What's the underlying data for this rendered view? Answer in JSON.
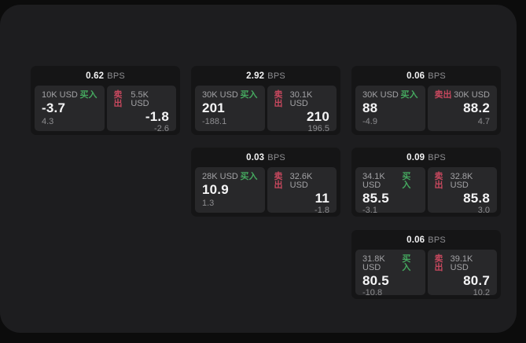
{
  "labels": {
    "bps_unit": "BPS",
    "buy": "买入",
    "sell": "卖出"
  },
  "colors": {
    "buy_green": "#45a85f",
    "sell_red": "#c7485e",
    "window_bg": "#1d1d1f",
    "card_bg": "#151516",
    "panel_bg": "#28282a"
  },
  "cards": [
    {
      "bps": "0.62",
      "buy": {
        "amount": "10K USD",
        "price": "-3.7",
        "delta": "4.3"
      },
      "sell": {
        "amount": "5.5K USD",
        "price": "-1.8",
        "delta": "-2.6"
      }
    },
    {
      "bps": "2.92",
      "buy": {
        "amount": "30K USD",
        "price": "201",
        "delta": "-188.1"
      },
      "sell": {
        "amount": "30.1K USD",
        "price": "210",
        "delta": "196.5"
      }
    },
    {
      "bps": "0.06",
      "buy": {
        "amount": "30K USD",
        "price": "88",
        "delta": "-4.9"
      },
      "sell": {
        "amount": "30K USD",
        "price": "88.2",
        "delta": "4.7"
      }
    },
    {
      "bps": "0.03",
      "buy": {
        "amount": "28K USD",
        "price": "10.9",
        "delta": "1.3"
      },
      "sell": {
        "amount": "32.6K USD",
        "price": "11",
        "delta": "-1.8"
      }
    },
    {
      "bps": "0.09",
      "buy": {
        "amount": "34.1K USD",
        "price": "85.5",
        "delta": "-3.1"
      },
      "sell": {
        "amount": "32.8K USD",
        "price": "85.8",
        "delta": "3.0"
      }
    },
    {
      "bps": "0.06",
      "buy": {
        "amount": "31.8K USD",
        "price": "80.5",
        "delta": "-10.8"
      },
      "sell": {
        "amount": "39.1K USD",
        "price": "80.7",
        "delta": "10.2"
      }
    }
  ]
}
